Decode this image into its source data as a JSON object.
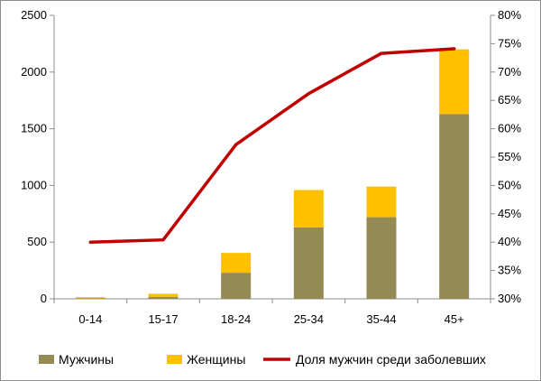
{
  "chart_data": {
    "type": "bar",
    "subtype": "stacked-bar-with-line",
    "title": "",
    "xlabel": "",
    "ylabel": "",
    "categories": [
      "0-14",
      "15-17",
      "18-24",
      "25-34",
      "35-44",
      "45+"
    ],
    "series": [
      {
        "name": "Мужчины",
        "kind": "bar",
        "axis": "left",
        "color": "#948A54",
        "values": [
          6,
          18,
          230,
          630,
          720,
          1630
        ]
      },
      {
        "name": "Женщины",
        "kind": "bar",
        "axis": "left",
        "color": "#FFC000",
        "values": [
          9,
          27,
          175,
          330,
          270,
          570
        ]
      },
      {
        "name": "Доля мужчин среди заболевших",
        "kind": "line",
        "axis": "right",
        "color": "#C00000",
        "values": [
          40.0,
          40.4,
          57.2,
          66.2,
          73.3,
          74.1
        ]
      }
    ],
    "y_left": {
      "min": 0,
      "max": 2500,
      "ticks": [
        0,
        500,
        1000,
        1500,
        2000,
        2500
      ]
    },
    "y_right": {
      "min": 30,
      "max": 80,
      "ticks": [
        30,
        35,
        40,
        45,
        50,
        55,
        60,
        65,
        70,
        75,
        80
      ],
      "tick_labels": [
        "30%",
        "35%",
        "40%",
        "45%",
        "50%",
        "55%",
        "60%",
        "65%",
        "70%",
        "75%",
        "80%"
      ]
    },
    "grid": false,
    "legend": "bottom"
  }
}
